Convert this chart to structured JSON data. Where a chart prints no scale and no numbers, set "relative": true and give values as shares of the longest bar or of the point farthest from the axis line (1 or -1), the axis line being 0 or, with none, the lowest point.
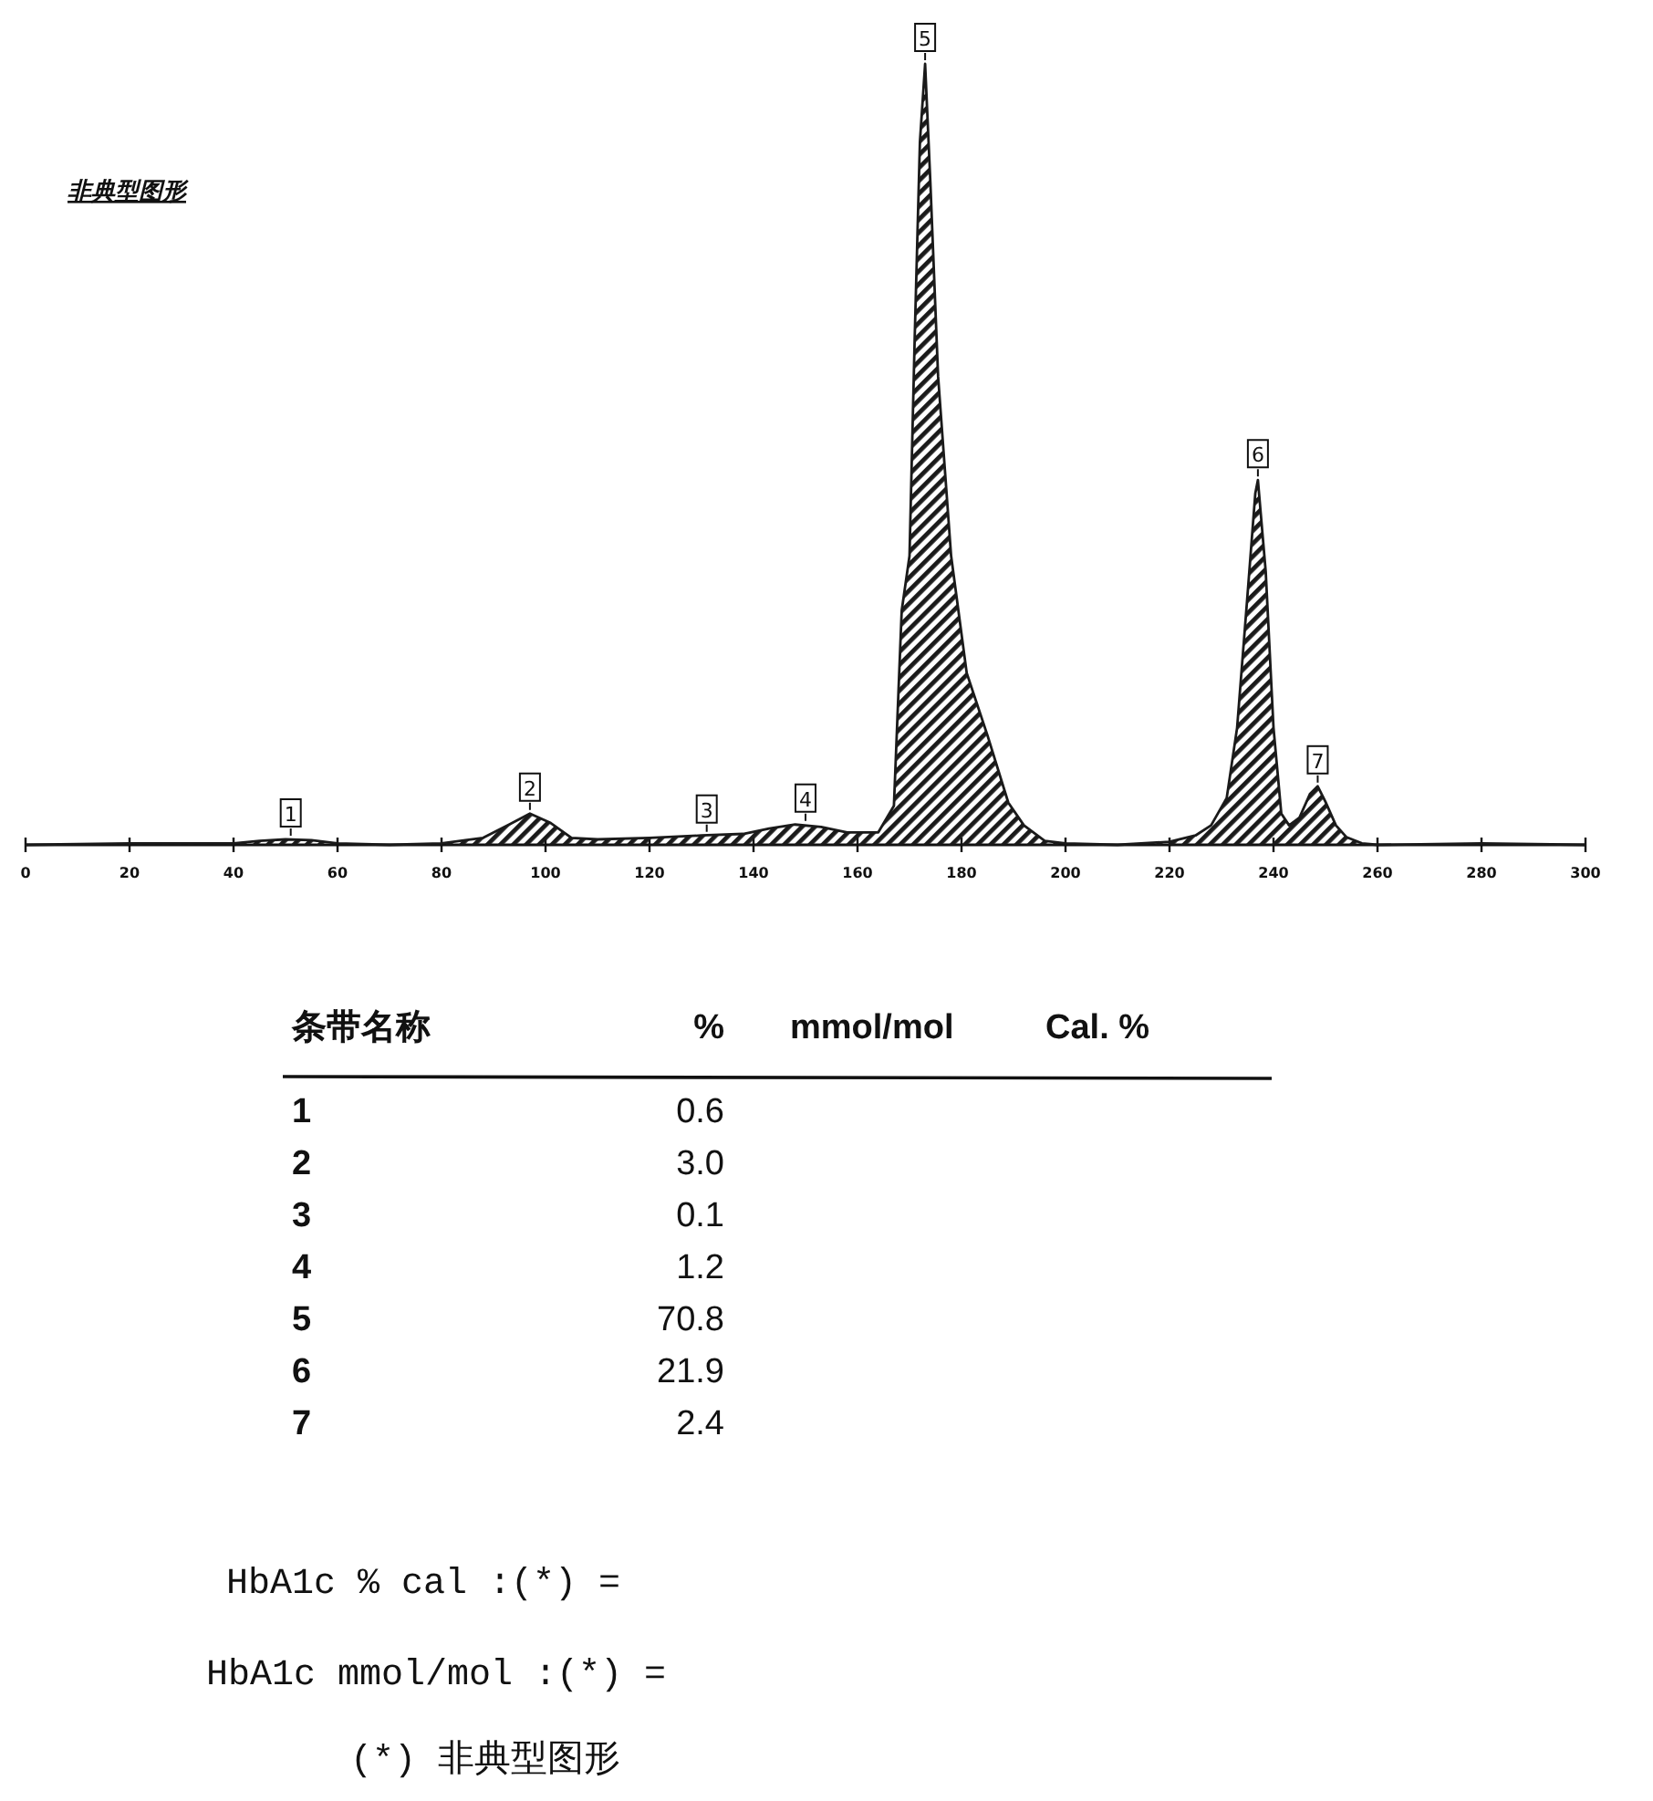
{
  "chart_data": {
    "type": "area",
    "title": "非典型图形",
    "relative": true,
    "tick_labels": "x",
    "xlim": [
      0,
      300
    ],
    "xticks": [
      0,
      20,
      40,
      60,
      80,
      100,
      120,
      140,
      160,
      180,
      200,
      220,
      240,
      260,
      280,
      300
    ],
    "grid": false,
    "marker": "none",
    "line_style": "solid",
    "x": [
      0,
      20,
      40,
      45,
      50,
      55,
      60,
      70,
      80,
      88,
      93,
      97,
      101,
      105,
      110,
      120,
      130,
      138,
      143,
      148,
      153,
      158,
      164,
      167,
      168.5,
      170,
      171,
      172,
      173,
      174,
      175.5,
      178,
      181,
      185,
      189,
      192,
      196,
      200,
      210,
      220,
      225,
      228,
      231,
      233,
      235,
      236.5,
      237,
      238.5,
      240,
      241.5,
      243,
      245,
      247,
      248.5,
      250,
      252,
      254,
      257,
      260,
      280,
      290,
      300
    ],
    "series": [
      {
        "color": "#1a1a1a",
        "values": [
          0,
          0.002,
          0.002,
          0.005,
          0.007,
          0.006,
          0.002,
          0,
          0.002,
          0.009,
          0.026,
          0.04,
          0.028,
          0.009,
          0.007,
          0.009,
          0.012,
          0.014,
          0.021,
          0.026,
          0.023,
          0.016,
          0.016,
          0.05,
          0.3,
          0.37,
          0.65,
          0.9,
          1,
          0.85,
          0.6,
          0.37,
          0.22,
          0.14,
          0.054,
          0.025,
          0.005,
          0.002,
          0,
          0.004,
          0.012,
          0.025,
          0.06,
          0.15,
          0.32,
          0.45,
          0.467,
          0.35,
          0.15,
          0.04,
          0.025,
          0.035,
          0.065,
          0.075,
          0.055,
          0.025,
          0.01,
          0.002,
          0,
          0.002,
          0.001,
          0
        ]
      }
    ],
    "annotations": [
      {
        "text": "1",
        "x": 51,
        "y": 0.007
      },
      {
        "text": "2",
        "x": 97,
        "y": 0.04
      },
      {
        "text": "3",
        "x": 131,
        "y": 0.012
      },
      {
        "text": "4",
        "x": 150,
        "y": 0.026
      },
      {
        "text": "5",
        "x": 173,
        "y": 1
      },
      {
        "text": "6",
        "x": 237,
        "y": 0.467
      },
      {
        "text": "7",
        "x": 248.5,
        "y": 0.075
      },
      "条带名称",
      "%",
      "mmol/mol",
      "Cal. %",
      "1",
      "0.6",
      "2",
      "3.0",
      "3",
      "0.1",
      "4",
      "1.2",
      "5",
      "70.8",
      "6",
      "21.9",
      "7",
      "2.4",
      "HbA1c % cal :(*) =",
      "HbA1c mmol/mol :(*) =",
      "(*) 非典型图形"
    ]
  }
}
